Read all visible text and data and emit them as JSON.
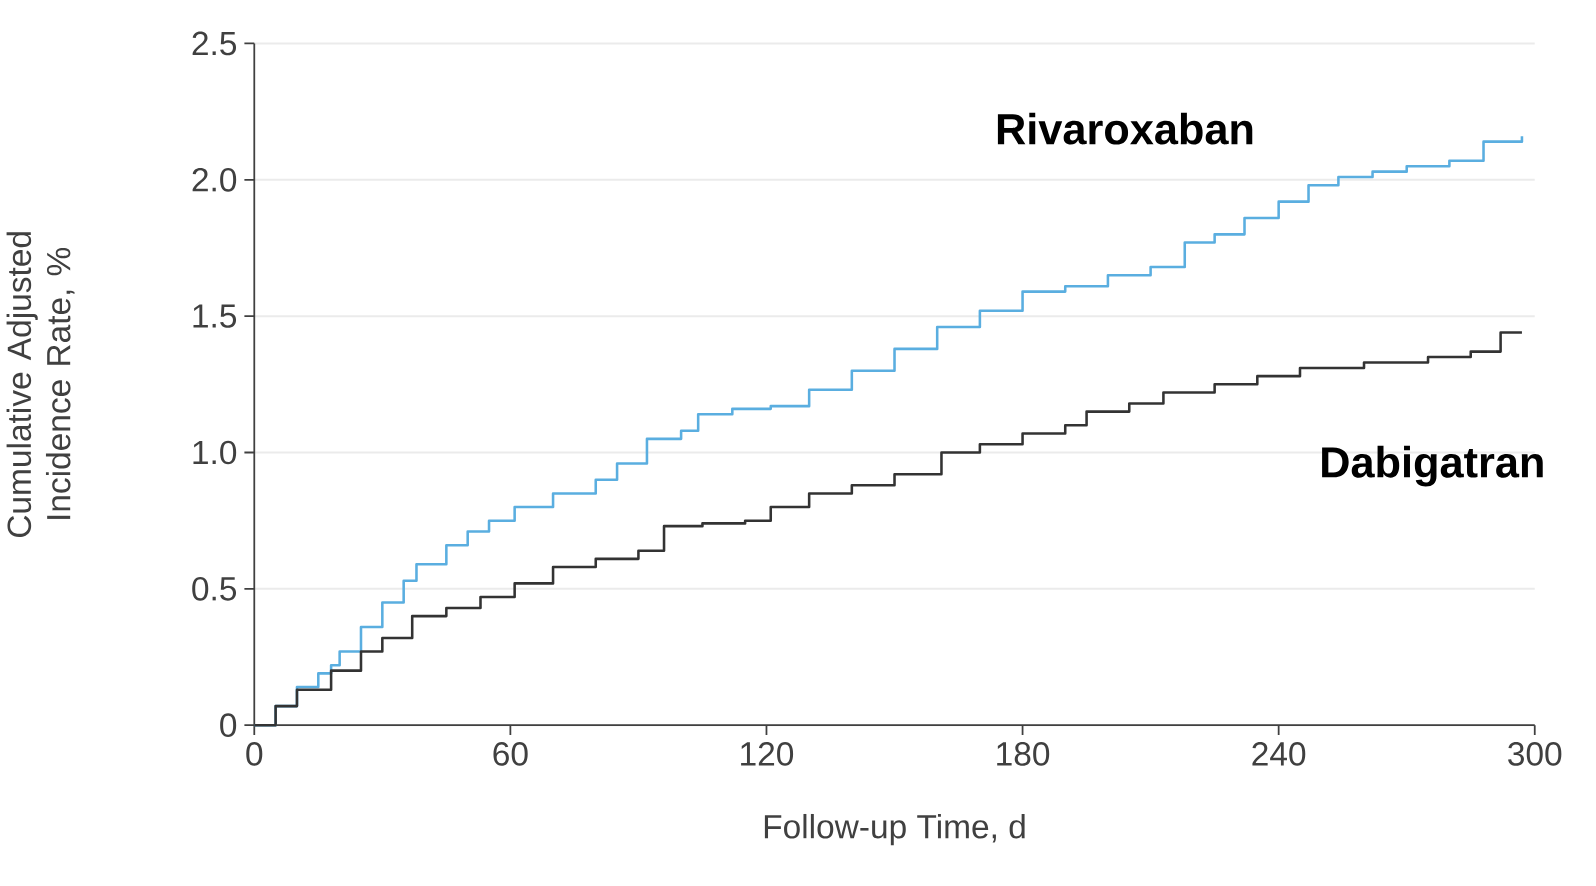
{
  "chart_data": {
    "type": "step",
    "xlabel": "Follow-up Time, d",
    "ylabel": "Cumulative Adjusted Incidence Rate, %",
    "xlim": [
      0,
      300
    ],
    "xticks": [
      0,
      60,
      120,
      180,
      240,
      300
    ],
    "ylim": [
      0,
      2.5
    ],
    "yticks": [
      0,
      0.5,
      {
        "value": 1.0,
        "label": "1.0"
      },
      1.5,
      {
        "value": 2.0,
        "label": "2.0"
      },
      2.5
    ],
    "grid": "y",
    "series": [
      {
        "name": "Rivaroxaban",
        "color": "#5aaee0",
        "x": [
          0,
          5,
          10,
          15,
          18,
          20,
          25,
          30,
          35,
          38,
          45,
          50,
          55,
          61,
          70,
          80,
          85,
          92,
          100,
          104,
          112,
          121,
          130,
          140,
          150,
          160,
          170,
          180,
          190,
          200,
          210,
          218,
          225,
          232,
          240,
          247,
          254,
          262,
          270,
          280,
          288,
          297
        ],
        "values": [
          0,
          0.07,
          0.14,
          0.19,
          0.22,
          0.27,
          0.36,
          0.45,
          0.53,
          0.59,
          0.66,
          0.71,
          0.75,
          0.8,
          0.85,
          0.9,
          0.96,
          1.05,
          1.08,
          1.14,
          1.16,
          1.17,
          1.23,
          1.3,
          1.38,
          1.46,
          1.52,
          1.59,
          1.61,
          1.65,
          1.68,
          1.77,
          1.8,
          1.86,
          1.92,
          1.98,
          2.01,
          2.03,
          2.05,
          2.07,
          2.14,
          2.16
        ]
      },
      {
        "name": "Dabigatran",
        "color": "#333333",
        "x": [
          0,
          5,
          10,
          18,
          25,
          30,
          37,
          45,
          53,
          61,
          70,
          80,
          90,
          96,
          105,
          115,
          121,
          130,
          140,
          150,
          161,
          170,
          180,
          190,
          195,
          205,
          213,
          225,
          235,
          245,
          260,
          275,
          285,
          292,
          297
        ],
        "values": [
          0,
          0.07,
          0.13,
          0.2,
          0.27,
          0.32,
          0.4,
          0.43,
          0.47,
          0.52,
          0.58,
          0.61,
          0.64,
          0.73,
          0.74,
          0.75,
          0.8,
          0.85,
          0.88,
          0.92,
          1.0,
          1.03,
          1.07,
          1.1,
          1.15,
          1.18,
          1.22,
          1.25,
          1.28,
          1.31,
          1.33,
          1.35,
          1.37,
          1.44,
          1.44
        ]
      }
    ]
  }
}
